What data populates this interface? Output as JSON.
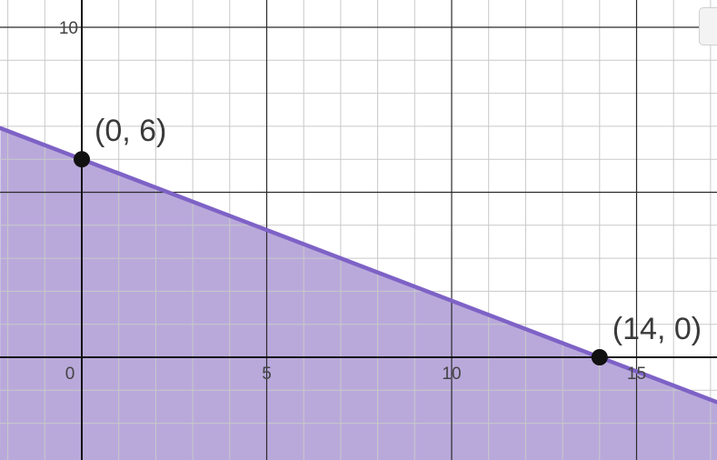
{
  "chart_data": {
    "type": "line",
    "title": "",
    "xlabel": "",
    "ylabel": "",
    "xlim": [
      -2.2,
      17.2
    ],
    "ylim": [
      -2.8,
      10.8
    ],
    "grid": true,
    "minor_step": 1,
    "major_step": 5,
    "x_ticks": [
      0,
      5,
      10,
      15
    ],
    "x_tick_labels": [
      "0",
      "5",
      "10",
      "15"
    ],
    "y_ticks": [
      10
    ],
    "y_tick_labels": [
      "10"
    ],
    "series": [
      {
        "name": "boundary",
        "equation_slope": -0.4285714,
        "equation_intercept": 6,
        "x": [
          -2.2,
          17.2
        ],
        "y": [
          6.942857,
          -1.371429
        ],
        "color": "#7e62c6",
        "shaded_region": "below",
        "fill_color": "#b9a9db"
      }
    ],
    "points": [
      {
        "x": 0,
        "y": 6,
        "label": "(0, 6)"
      },
      {
        "x": 14,
        "y": 0,
        "label": "(14, 0)"
      }
    ]
  },
  "colors": {
    "minor_grid": "#c9c9c9",
    "major_grid": "#2b2b2b",
    "axis": "#111111",
    "point": "#111111",
    "line": "#7e62c6",
    "fill": "#b9a9db"
  }
}
